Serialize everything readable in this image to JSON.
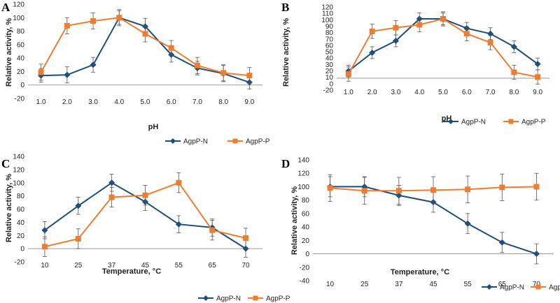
{
  "colors": {
    "N": "#1f4e79",
    "P": "#ed7d31"
  },
  "chart_data": [
    {
      "panel": "A",
      "type": "line",
      "xlabel": "pH",
      "ylabel": "Relative activity, %",
      "categories": [
        "1.0",
        "2.0",
        "3.0",
        "4.0",
        "5.0",
        "6.0",
        "7.0",
        "8.0",
        "9.0"
      ],
      "ylim": [
        -20,
        120
      ],
      "yticks": [
        "-20",
        "0",
        "20",
        "40",
        "60",
        "80",
        "100",
        "120"
      ],
      "legend_position": "bottom",
      "series": [
        {
          "name": "AgpP-N",
          "marker": "diamond",
          "values": [
            14,
            15,
            30,
            100,
            87,
            45,
            25,
            17,
            4
          ],
          "errors": [
            10,
            12,
            11,
            12,
            12,
            11,
            10,
            12,
            10
          ]
        },
        {
          "name": "AgpP-P",
          "marker": "square",
          "values": [
            19,
            88,
            95,
            100,
            76,
            55,
            29,
            18,
            14
          ],
          "errors": [
            12,
            12,
            12,
            10,
            12,
            11,
            12,
            12,
            12
          ]
        }
      ]
    },
    {
      "panel": "B",
      "type": "line",
      "xlabel": "pH",
      "ylabel": "Relative activity, %",
      "categories": [
        "1.0",
        "2.0",
        "3.0",
        "4.0",
        "5.0",
        "6.0",
        "7.0",
        "8.0",
        "9.0"
      ],
      "ylim": [
        -20,
        120
      ],
      "yticks": [
        "-20",
        "0",
        "10",
        "20",
        "30",
        "40",
        "50",
        "60",
        "70",
        "80",
        "90",
        "100",
        "110",
        "120"
      ],
      "legend_position": "bottom",
      "series": [
        {
          "name": "AgpP-N",
          "marker": "diamond",
          "values": [
            12,
            43,
            63,
            100,
            100,
            84,
            75,
            53,
            24
          ],
          "errors": [
            10,
            10,
            10,
            10,
            10,
            10,
            10,
            10,
            10
          ]
        },
        {
          "name": "AgpP-P",
          "marker": "square",
          "values": [
            7,
            79,
            85,
            90,
            100,
            75,
            60,
            10,
            2
          ],
          "errors": [
            12,
            12,
            12,
            12,
            12,
            12,
            12,
            12,
            12
          ]
        }
      ]
    },
    {
      "panel": "C",
      "type": "line",
      "xlabel": "Temperature, °C",
      "ylabel": "Relative activity, %",
      "categories": [
        "10",
        "25",
        "37",
        "45",
        "55",
        "65",
        "70"
      ],
      "ylim": [
        -20,
        140
      ],
      "yticks": [
        "-20",
        "0",
        "20",
        "40",
        "60",
        "80",
        "100",
        "120",
        "140"
      ],
      "legend_position": "bottom-right",
      "series": [
        {
          "name": "AgpP-N",
          "marker": "diamond",
          "values": [
            28,
            65,
            100,
            71,
            37,
            32,
            0
          ],
          "errors": [
            13,
            13,
            13,
            13,
            13,
            13,
            13
          ]
        },
        {
          "name": "AgpP-P",
          "marker": "square",
          "values": [
            3,
            15,
            78,
            81,
            100,
            28,
            16
          ],
          "errors": [
            15,
            15,
            15,
            15,
            15,
            15,
            15
          ]
        }
      ]
    },
    {
      "panel": "D",
      "type": "line",
      "xlabel": "Temperature, °C",
      "ylabel": "Relative activity, %",
      "categories": [
        "10",
        "25",
        "37",
        "45",
        "55",
        "65",
        "70"
      ],
      "ylim": [
        -40,
        140
      ],
      "yticks": [
        "-40",
        "-20",
        "0",
        "20",
        "40",
        "60",
        "80",
        "100",
        "120",
        "140"
      ],
      "legend_position": "bottom-right",
      "series": [
        {
          "name": "AgpP-N",
          "marker": "diamond",
          "values": [
            100,
            100,
            87,
            77,
            45,
            17,
            0
          ],
          "errors": [
            15,
            15,
            15,
            15,
            15,
            15,
            15
          ]
        },
        {
          "name": "AgpP-P",
          "marker": "square",
          "values": [
            98,
            94,
            94,
            95,
            96,
            99,
            100
          ],
          "errors": [
            20,
            20,
            20,
            20,
            20,
            20,
            20
          ]
        }
      ]
    }
  ]
}
